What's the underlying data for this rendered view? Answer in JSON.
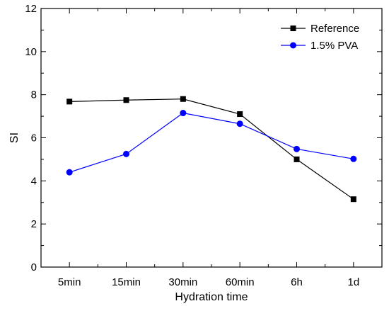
{
  "chart_data": {
    "type": "line",
    "xlabel": "Hydration time",
    "ylabel": "SI",
    "categories": [
      "5min",
      "15min",
      "30min",
      "60min",
      "6h",
      "1d"
    ],
    "ylim": [
      0,
      12
    ],
    "yticks": [
      "0",
      "2",
      "4",
      "6",
      "8",
      "10",
      "12"
    ],
    "grid": false,
    "legend_position": "top-right",
    "series": [
      {
        "name": "Reference",
        "marker": "square",
        "color": "#000000",
        "values": [
          7.68,
          7.75,
          7.8,
          7.1,
          5.0,
          3.15
        ]
      },
      {
        "name": "1.5% PVA",
        "marker": "circle",
        "color": "#0000ff",
        "values": [
          4.4,
          5.25,
          7.15,
          6.65,
          5.48,
          5.02
        ]
      }
    ]
  }
}
